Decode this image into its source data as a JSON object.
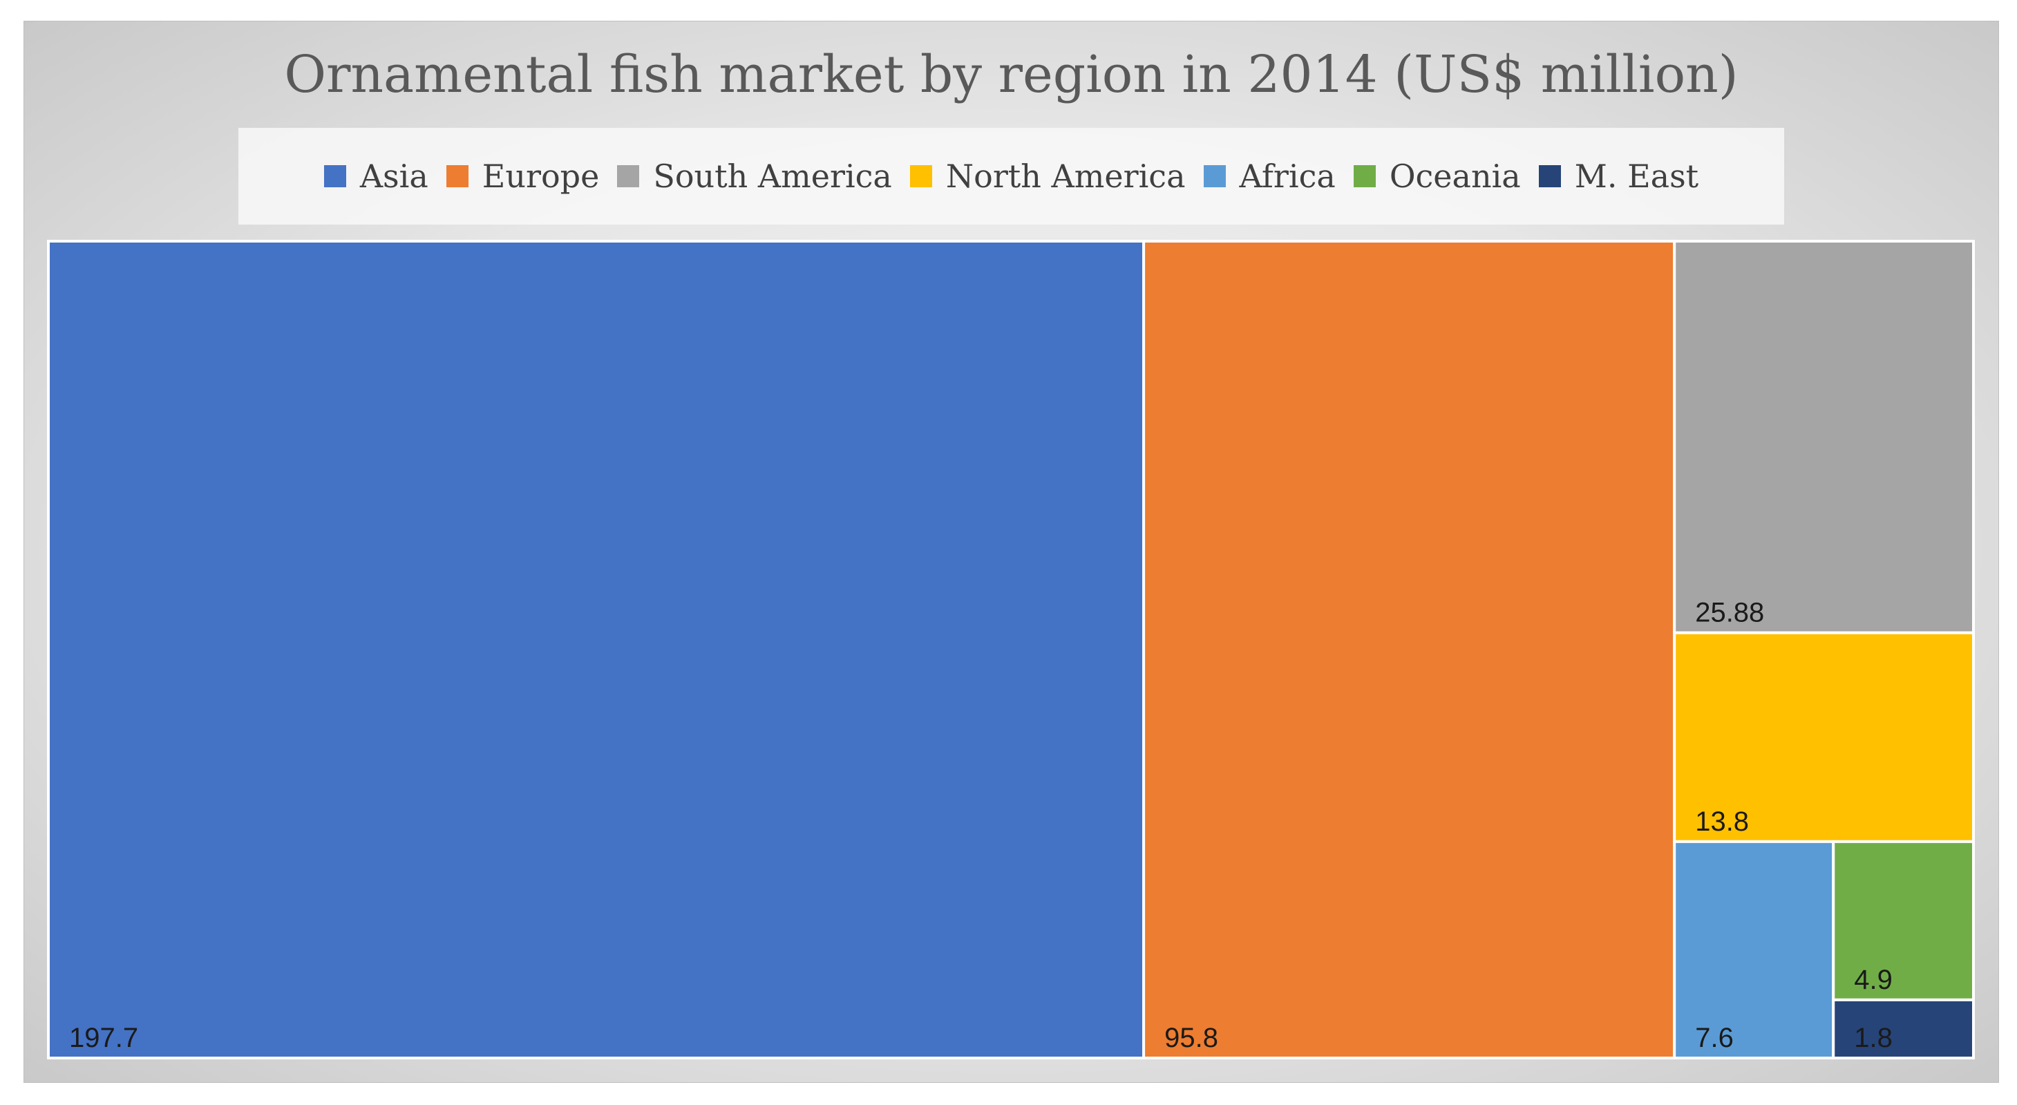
{
  "chart_data": {
    "type": "treemap",
    "title": "Ornamental fish market by region in 2014 (US$ million)",
    "legend_position": "top",
    "series": [
      {
        "name": "Asia",
        "value": 197.7,
        "label": "197.7",
        "color": "#4472C4"
      },
      {
        "name": "Europe",
        "value": 95.8,
        "label": "95.8",
        "color": "#ED7D31"
      },
      {
        "name": "South America",
        "value": 25.88,
        "label": "25.88",
        "color": "#A5A5A5"
      },
      {
        "name": "North America",
        "value": 13.8,
        "label": "13.8",
        "color": "#FFC000"
      },
      {
        "name": "Africa",
        "value": 7.6,
        "label": "7.6",
        "color": "#5B9BD5"
      },
      {
        "name": "Oceania",
        "value": 4.9,
        "label": "4.9",
        "color": "#70AD47"
      },
      {
        "name": "M. East",
        "value": 1.8,
        "label": "1.8",
        "color": "#264478"
      }
    ]
  }
}
